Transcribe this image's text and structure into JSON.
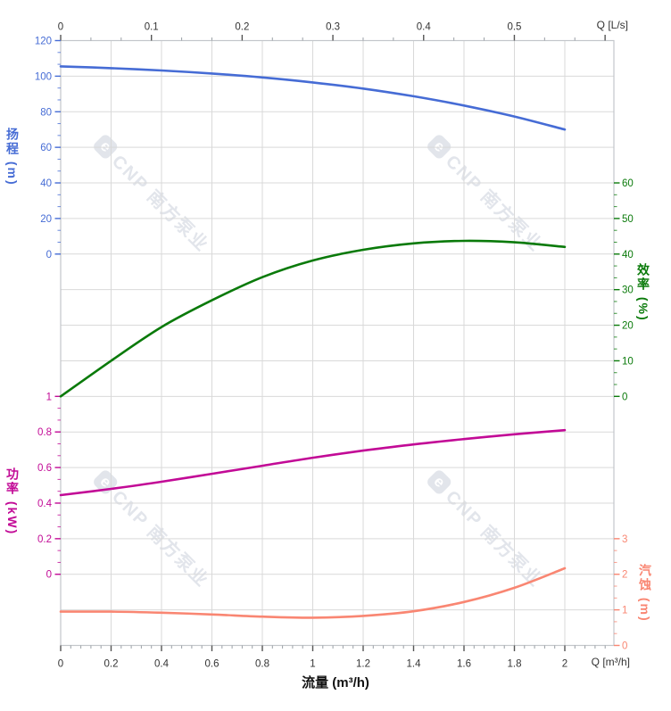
{
  "watermark": {
    "logo_letter": "e",
    "brand": "CNP 南方泵业"
  },
  "chart_data": {
    "type": "line",
    "grid": {
      "visible": true,
      "columns_q_step": 0.2,
      "rows": 18
    },
    "top_axis": {
      "unit_label": "Q [L/s]",
      "tick_values": [
        0,
        0.1,
        0.2,
        0.3,
        0.4,
        0.5
      ],
      "tick_labels": [
        "0",
        "0.1",
        "0.2",
        "0.3",
        "0.4",
        "0.5"
      ],
      "minor_step": 0.03333,
      "label_color": "#333333"
    },
    "bottom_axis": {
      "unit_label": "Q [m³/h]",
      "title": "流量 (m³/h)",
      "tick_values": [
        0,
        0.2,
        0.4,
        0.6,
        0.8,
        1.0,
        1.2,
        1.4,
        1.6,
        1.8,
        2.0
      ],
      "tick_labels": [
        "0",
        "0.2",
        "0.4",
        "0.6",
        "0.8",
        "1",
        "1.2",
        "1.4",
        "1.6",
        "1.8",
        "2"
      ],
      "minor_step": 0.04,
      "range_m3h": [
        0,
        2.19
      ],
      "label_color": "#333333"
    },
    "y_axes": [
      {
        "id": "head",
        "title": "扬程 (m)",
        "side": "left",
        "color": "#466cd5",
        "max": 120,
        "min": 0,
        "row_max": 0,
        "row_min": 6,
        "tick_values": [
          120,
          100,
          80,
          60,
          40,
          20,
          0
        ],
        "tick_labels": [
          "120",
          "100",
          "80",
          "60",
          "40",
          "20",
          "0"
        ]
      },
      {
        "id": "eff",
        "title": "效率 (%)",
        "side": "right",
        "color": "#0a7a0a",
        "max": 60,
        "min": 0,
        "row_max": 4,
        "row_min": 10,
        "tick_values": [
          60,
          50,
          40,
          30,
          20,
          10,
          0
        ],
        "tick_labels": [
          "60",
          "50",
          "40",
          "30",
          "20",
          "10",
          "0"
        ]
      },
      {
        "id": "power",
        "title": "功率 (kW)",
        "side": "left",
        "color": "#c20a96",
        "max": 1,
        "min": 0,
        "row_max": 10,
        "row_min": 15,
        "tick_values": [
          1,
          0.8,
          0.6,
          0.4,
          0.2,
          0
        ],
        "tick_labels": [
          "1",
          "0.8",
          "0.6",
          "0.4",
          "0.2",
          "0"
        ]
      },
      {
        "id": "npsh",
        "title": "汽蚀 (m)",
        "side": "right",
        "color": "#f98672",
        "max": 3,
        "min": 0,
        "row_max": 14,
        "row_min": 17,
        "tick_values": [
          3,
          2,
          1,
          0
        ],
        "tick_labels": [
          "3",
          "2",
          "1",
          "0"
        ]
      }
    ],
    "series": [
      {
        "name": "扬程",
        "axis": "head",
        "color": "#466cd5",
        "q": [
          0,
          0.2,
          0.4,
          0.6,
          0.8,
          1.0,
          1.2,
          1.4,
          1.6,
          1.8,
          2.0
        ],
        "values": [
          105.5,
          104.5,
          103.2,
          101.5,
          99.3,
          96.5,
          93.0,
          88.7,
          83.5,
          77.3,
          70.0
        ]
      },
      {
        "name": "效率",
        "axis": "eff",
        "color": "#0a7a0a",
        "q": [
          0,
          0.2,
          0.4,
          0.6,
          0.8,
          1.0,
          1.2,
          1.4,
          1.6,
          1.8,
          2.0
        ],
        "values": [
          0,
          10,
          19.5,
          27,
          33.5,
          38.2,
          41.2,
          43.0,
          43.7,
          43.3,
          42.0
        ]
      },
      {
        "name": "功率",
        "axis": "power",
        "color": "#c20a96",
        "q": [
          0,
          0.2,
          0.4,
          0.6,
          0.8,
          1.0,
          1.2,
          1.4,
          1.6,
          1.8,
          2.0
        ],
        "values": [
          0.445,
          0.48,
          0.52,
          0.565,
          0.61,
          0.655,
          0.695,
          0.73,
          0.76,
          0.787,
          0.81
        ]
      },
      {
        "name": "汽蚀",
        "axis": "npsh",
        "color": "#f98672",
        "q": [
          0,
          0.2,
          0.4,
          0.6,
          0.8,
          1.0,
          1.2,
          1.4,
          1.6,
          1.8,
          2.0
        ],
        "values": [
          0.95,
          0.95,
          0.92,
          0.87,
          0.81,
          0.78,
          0.83,
          0.96,
          1.22,
          1.62,
          2.17
        ]
      }
    ],
    "style_colors": {
      "grid": "#d9d9d9",
      "border": "#c3c6ca",
      "tick_major": "#555555",
      "tick_minor": "#9aa0a6"
    }
  }
}
